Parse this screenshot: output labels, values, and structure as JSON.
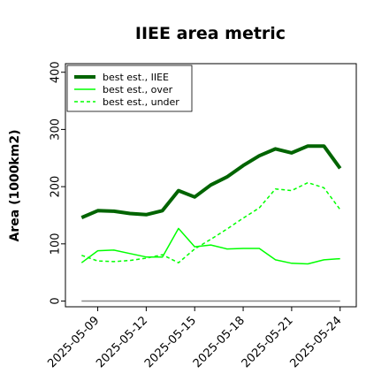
{
  "chart_data": {
    "type": "line",
    "title": "IIEE area metric",
    "xlabel": "",
    "ylabel": "Area (1000km2)",
    "ylim": [
      -10,
      415
    ],
    "xlim": [
      "2025-05-07",
      "2025-05-25"
    ],
    "yticks": [
      0,
      100,
      200,
      300,
      400
    ],
    "xticks": [
      "2025-05-09",
      "2025-05-12",
      "2025-05-15",
      "2025-05-18",
      "2025-05-21",
      "2025-05-24"
    ],
    "x": [
      "2025-05-08",
      "2025-05-09",
      "2025-05-10",
      "2025-05-11",
      "2025-05-12",
      "2025-05-13",
      "2025-05-14",
      "2025-05-15",
      "2025-05-16",
      "2025-05-17",
      "2025-05-18",
      "2025-05-19",
      "2025-05-20",
      "2025-05-21",
      "2025-05-22",
      "2025-05-23",
      "2025-05-24"
    ],
    "series": [
      {
        "name": "best est., IIEE",
        "color": "#006400",
        "style": "solid-thick",
        "values": [
          146,
          158,
          157,
          153,
          151,
          158,
          193,
          182,
          203,
          217,
          237,
          254,
          266,
          259,
          271,
          271,
          232
        ]
      },
      {
        "name": "best est., over",
        "color": "#00ff00",
        "style": "solid",
        "values": [
          67,
          88,
          89,
          83,
          77,
          77,
          127,
          95,
          98,
          91,
          92,
          92,
          72,
          66,
          65,
          72,
          74
        ]
      },
      {
        "name": "best est., under",
        "color": "#00ff00",
        "style": "dashed",
        "values": [
          80,
          70,
          69,
          71,
          75,
          81,
          67,
          91,
          108,
          126,
          145,
          163,
          196,
          193,
          207,
          198,
          160
        ]
      }
    ],
    "hlines": [
      {
        "value": 0,
        "color": "#888888"
      }
    ],
    "grid": false,
    "legend_position": "top-left"
  }
}
